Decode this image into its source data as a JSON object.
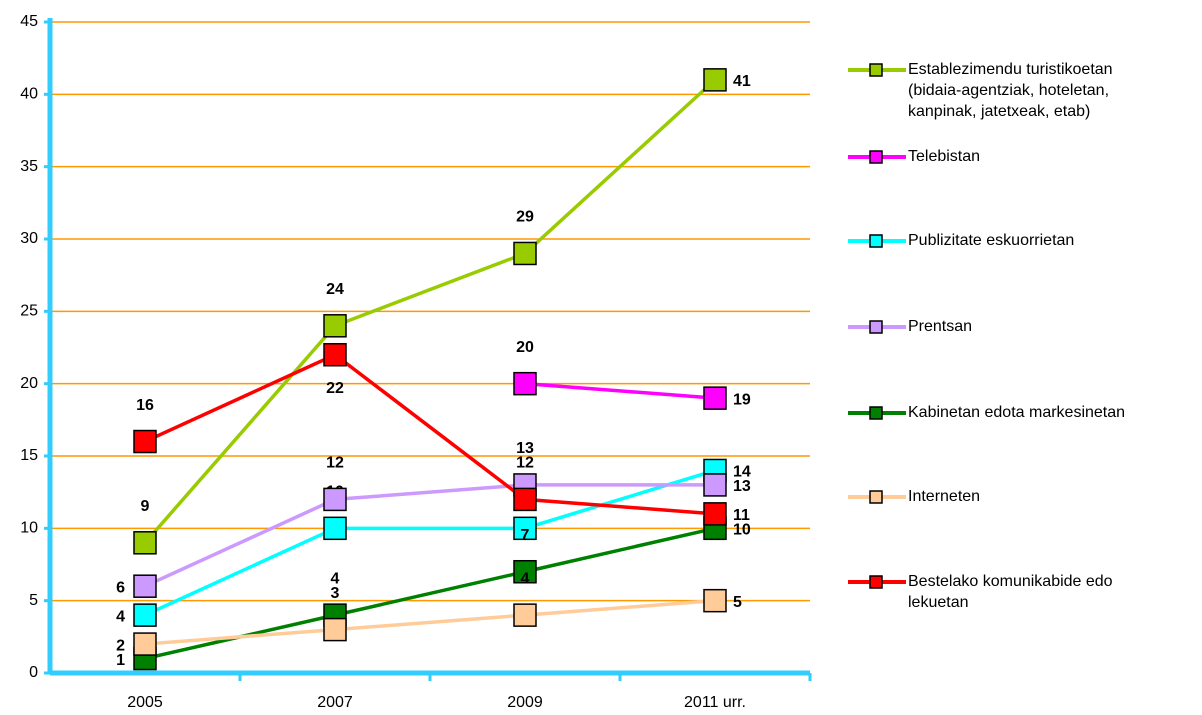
{
  "chart_data": {
    "type": "line",
    "categories": [
      "2005",
      "2007",
      "2009",
      "2011 urr."
    ],
    "series": [
      {
        "name": "Establezimendu turistikoetan\n(bidaia-agentziak, hoteletan,\nkanpinak, jatetxeak, etab)",
        "color": "#99cc00",
        "values": [
          9,
          24,
          29,
          41
        ]
      },
      {
        "name": "Telebistan",
        "color": "#ff00ff",
        "values": [
          null,
          null,
          20,
          19
        ]
      },
      {
        "name": "Publizitate eskuorrietan",
        "color": "#00ffff",
        "values": [
          4,
          10,
          10,
          14
        ]
      },
      {
        "name": "Prentsan",
        "color": "#cc99ff",
        "values": [
          6,
          12,
          13,
          13
        ]
      },
      {
        "name": "Kabinetan edota markesinetan",
        "color": "#008000",
        "values": [
          1,
          4,
          7,
          10
        ]
      },
      {
        "name": "Interneten",
        "color": "#ffcc99",
        "values": [
          2,
          3,
          4,
          5
        ]
      },
      {
        "name": "Bestelako komunikabide edo\nlekuetan",
        "color": "#ff0000",
        "values": [
          16,
          22,
          12,
          11
        ]
      }
    ],
    "ylim": [
      0,
      45
    ],
    "yticks": [
      0,
      5,
      10,
      15,
      20,
      25,
      30,
      35,
      40,
      45
    ],
    "grid": true,
    "grid_color": "#ff9900",
    "axis_color": "#33ccff",
    "legend": "right"
  }
}
